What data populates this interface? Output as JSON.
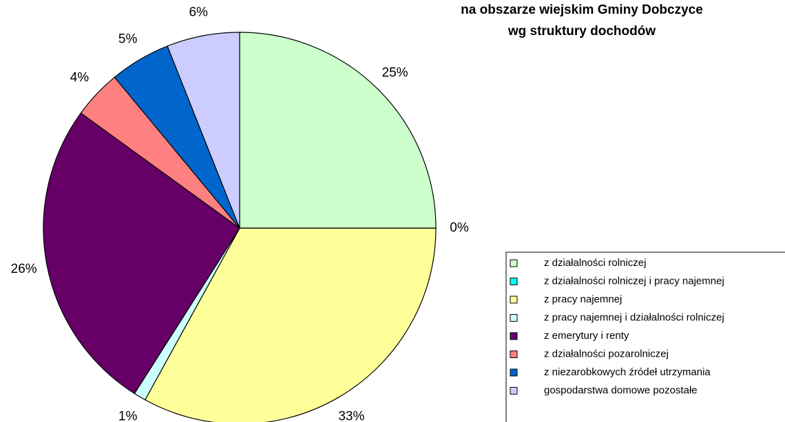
{
  "chart_data": {
    "type": "pie",
    "title": [
      "na obszarze wiejskim Gminy Dobczyce",
      "wg struktury dochodów"
    ],
    "categories": [
      "z działalności rolniczej",
      "z działalności rolniczej i pracy najemnej",
      "z pracy najemnej",
      "z pracy najemnej i działalności rolniczej",
      "z emerytury i renty",
      "z działalności pozarolniczej",
      "z niezarobkowych źródeł utrzymania",
      "gospodarstwa domowe pozostałe"
    ],
    "values": [
      25,
      0,
      33,
      1,
      26,
      4,
      5,
      6
    ],
    "value_labels": [
      "25%",
      "0%",
      "33%",
      "1%",
      "26%",
      "4%",
      "5%",
      "6%"
    ],
    "colors": [
      "#ccffcc",
      "#00ffff",
      "#ffff99",
      "#ccffff",
      "#660066",
      "#ff8080",
      "#0066cc",
      "#ccccff"
    ],
    "legend": "right"
  }
}
